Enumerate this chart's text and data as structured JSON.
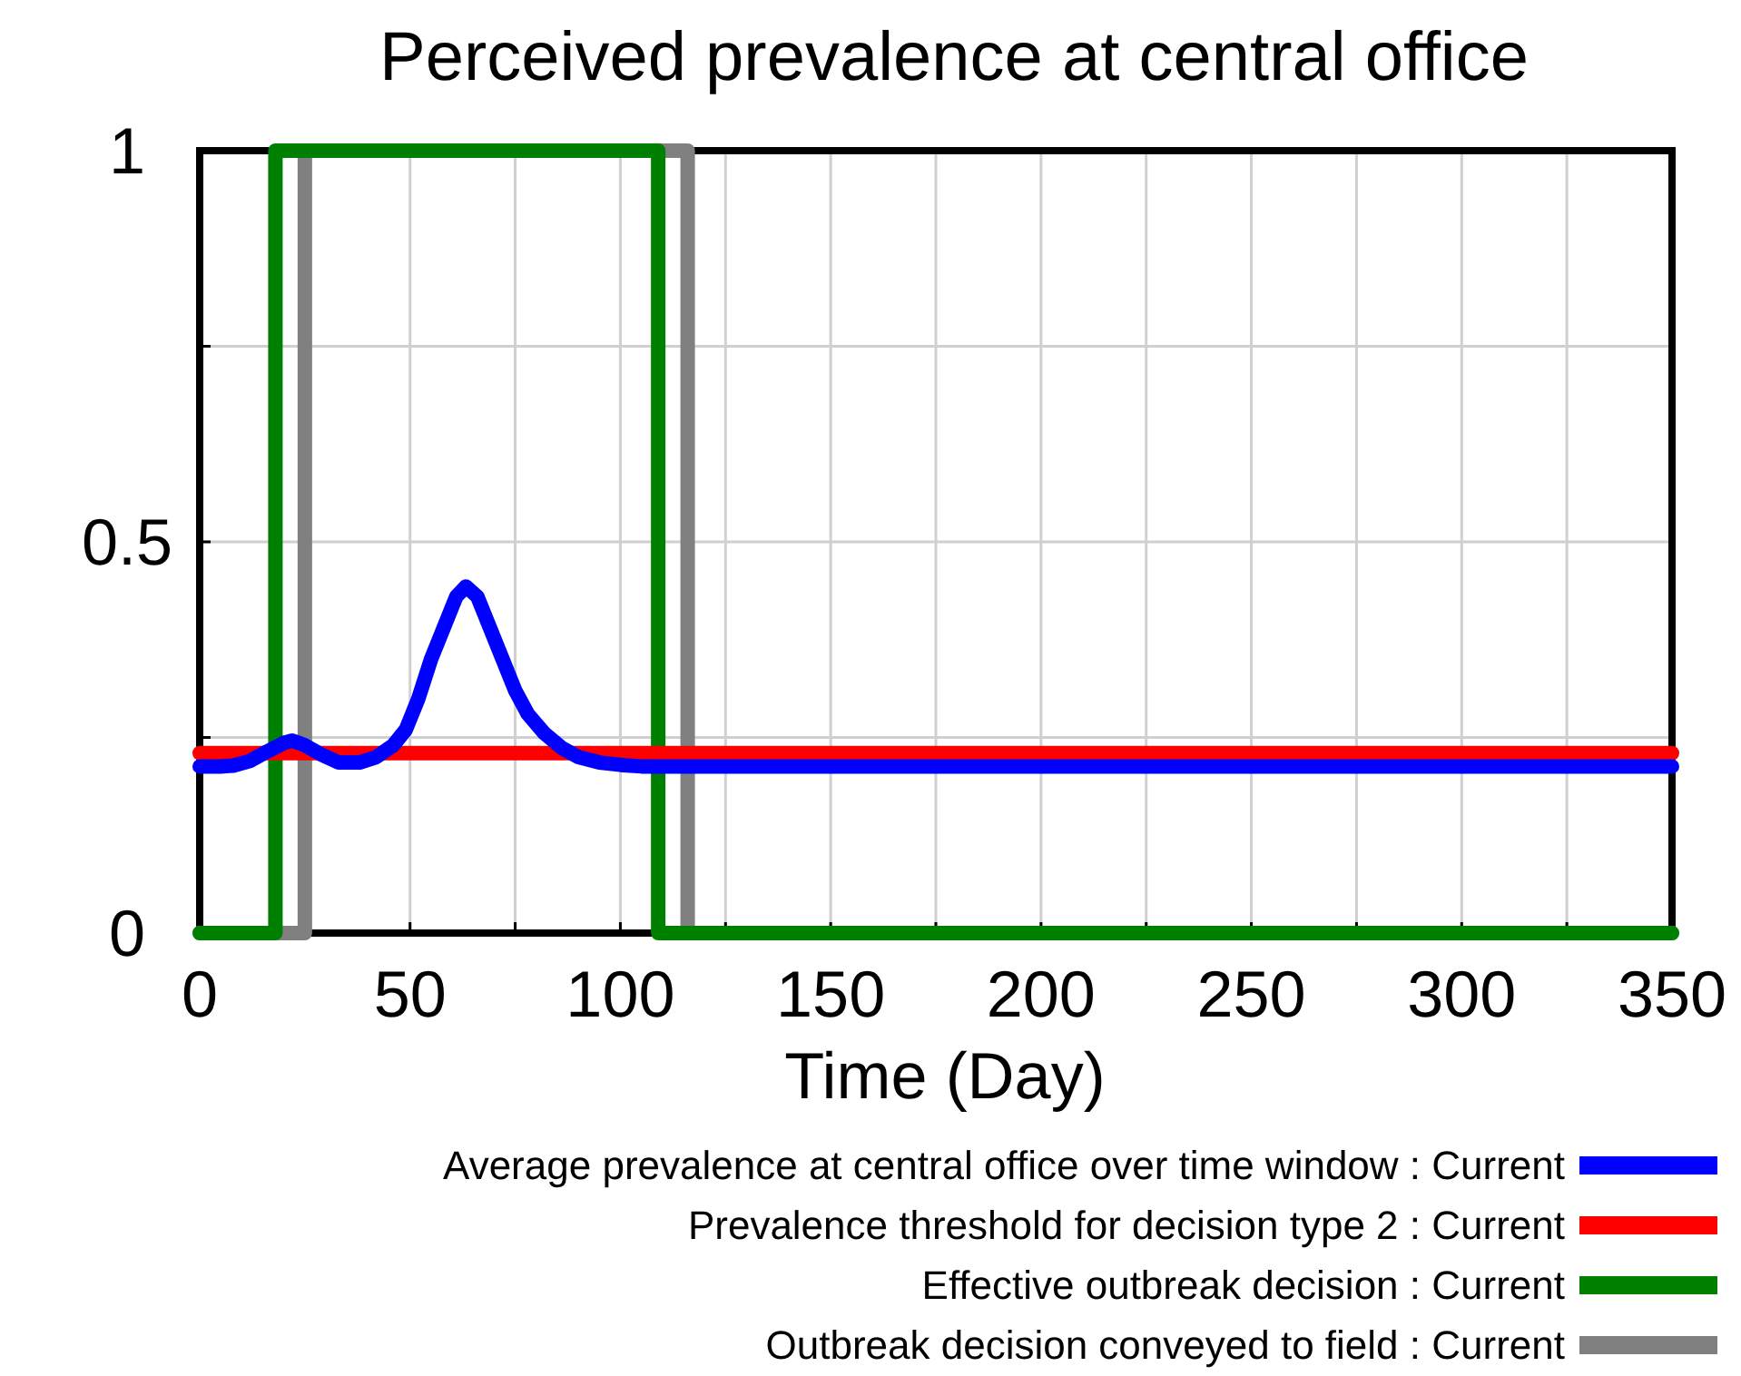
{
  "chart_data": {
    "type": "line",
    "title": "Perceived prevalence at central office",
    "xlabel": "Time (Day)",
    "xlim": [
      0,
      350
    ],
    "ylim": [
      0,
      1
    ],
    "xticks": [
      0,
      {
        "value": 25,
        "label": null
      },
      50,
      {
        "value": 75,
        "label": null
      },
      100,
      {
        "value": 125,
        "label": null
      },
      150,
      {
        "value": 175,
        "label": null
      },
      200,
      {
        "value": 225,
        "label": null
      },
      250,
      {
        "value": 275,
        "label": null
      },
      300,
      {
        "value": 325,
        "label": null
      },
      350
    ],
    "yticks": [
      0,
      {
        "value": 0.25,
        "label": null
      },
      0.5,
      {
        "value": 0.75,
        "label": null
      },
      1
    ],
    "grid": true,
    "legend": "bottom",
    "series": [
      {
        "name": "Average prevalence at central office over time window : Current",
        "color": "#0000ff",
        "x": [
          0,
          5,
          8,
          12,
          16,
          20,
          22,
          25,
          29,
          33,
          38,
          42,
          46,
          49,
          52,
          55,
          58,
          61,
          63.3,
          66,
          69,
          72,
          75,
          78,
          82,
          86,
          90,
          95,
          100,
          105,
          350
        ],
        "values": [
          0.213,
          0.213,
          0.214,
          0.22,
          0.232,
          0.243,
          0.246,
          0.24,
          0.228,
          0.218,
          0.218,
          0.225,
          0.24,
          0.26,
          0.3,
          0.35,
          0.39,
          0.43,
          0.443,
          0.43,
          0.39,
          0.35,
          0.31,
          0.28,
          0.255,
          0.237,
          0.225,
          0.218,
          0.215,
          0.213,
          0.213
        ]
      },
      {
        "name": "Prevalence threshold for decision type 2 : Current",
        "color": "#ff0000",
        "x": [
          0,
          350
        ],
        "values": [
          0.23,
          0.23
        ]
      },
      {
        "name": "Effective outbreak decision : Current",
        "color": "#008000",
        "type": "step",
        "x": [
          0,
          18,
          109,
          350
        ],
        "values": [
          0,
          1,
          0,
          0
        ]
      },
      {
        "name": "Outbreak decision conveyed to field : Current",
        "color": "#808080",
        "type": "step",
        "x": [
          0,
          25,
          116,
          350
        ],
        "values": [
          0,
          1,
          0,
          0
        ]
      }
    ]
  }
}
